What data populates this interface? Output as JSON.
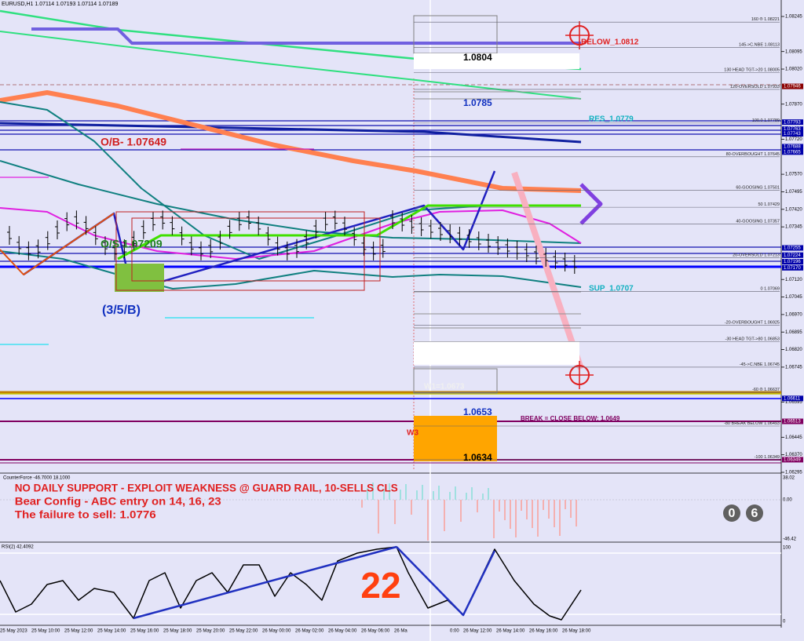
{
  "header": {
    "symbol": "EURUSD,H1",
    "ohlc": "1.07114 1.07193 1.07114 1.07189"
  },
  "price_axis": [
    "1.08245",
    "1.08095",
    "1.08020",
    "1.07870",
    "1.07720",
    "1.07570",
    "1.07495",
    "1.07420",
    "1.07345",
    "1.07120",
    "1.07045",
    "1.06970",
    "1.06895",
    "1.06820",
    "1.06745",
    "1.06595",
    "1.06445",
    "1.06370",
    "1.06295"
  ],
  "price_tags": [
    {
      "price": "1.07946",
      "color": "#8b0000"
    },
    {
      "price": "1.07793",
      "color": "#0000aa"
    },
    {
      "price": "1.07763",
      "color": "#0000aa"
    },
    {
      "price": "1.07743",
      "color": "#0000aa"
    },
    {
      "price": "1.07688",
      "color": "#0000aa"
    },
    {
      "price": "1.07665",
      "color": "#0000aa"
    },
    {
      "price": "1.07255",
      "color": "#0000aa"
    },
    {
      "price": "1.07224",
      "color": "#0000aa"
    },
    {
      "price": "1.07196",
      "color": "#0000aa"
    },
    {
      "price": "1.07170",
      "color": "#0000aa"
    },
    {
      "price": "1.06611",
      "color": "#0000aa"
    },
    {
      "price": "1.06513",
      "color": "#800060"
    },
    {
      "price": "1.06349",
      "color": "#800060"
    }
  ],
  "fib_levels": [
    {
      "name": "160 ®",
      "price": "1.08221"
    },
    {
      "name": "145->C.NBE",
      "price": "1.08113"
    },
    {
      "name": "130 HEAD TGT->20",
      "price": "1.08005"
    },
    {
      "name": "120-OVERSOLD",
      "price": "1.07933"
    },
    {
      "name": "100.0",
      "price": "1.07789"
    },
    {
      "name": "80-OVERBOUGHT",
      "price": "1.07645"
    },
    {
      "name": "60-GOOSING",
      "price": "1.07501"
    },
    {
      "name": "50",
      "price": "1.07429"
    },
    {
      "name": "40-GOOSING",
      "price": "1.07357"
    },
    {
      "name": "20-OVERSOLD",
      "price": "1.07213"
    },
    {
      "name": "0",
      "price": "1.07069"
    },
    {
      "name": "-20-OVERBOUGHT",
      "price": "1.06925"
    },
    {
      "name": "-30 HEAD TGT->80",
      "price": "1.06853"
    },
    {
      "name": "-45->C.NBE",
      "price": "1.06745"
    },
    {
      "name": "-60 ®",
      "price": "1.06637"
    },
    {
      "name": "-80 BREAK BELOW",
      "price": "1.06493"
    },
    {
      "name": "-100",
      "price": "1.06349"
    }
  ],
  "annotations": {
    "below": "BELOW_1.0812",
    "box_top": "1.0804",
    "box_mid": "1.0785",
    "res": "RES_1.0779",
    "overbought": "O/B- 1.07649",
    "oversold": "O/S 1.07209",
    "wave": "(3/5/B)",
    "sup": "SUP_1.0707",
    "w1": "W1=1.0673",
    "box_low": "1.0653",
    "w3": "W3",
    "break": "BREAK = CLOSE BELOW: 1.0649",
    "box_bottom": "1.0634"
  },
  "indicator": {
    "title": "CounterForce -46.7000 18.1000",
    "axis": [
      "38.02",
      "0.00",
      "-46.42"
    ],
    "notes": [
      "NO DAILY SUPPORT - EXPLOIT WEAKNESS @ GUARD RAIL, 10-SELLS CLS",
      "Bear Config - ABC entry on 14, 16, 23",
      "The failure to sell: 1.0776"
    ],
    "digits": [
      "0",
      "6"
    ]
  },
  "rsi": {
    "title": "RSI(2) 42.4092",
    "axis": [
      "100",
      "0"
    ],
    "big_number": "22"
  },
  "time_axis": [
    "25 May 2023",
    "25 May 10:00",
    "25 May 12:00",
    "25 May 14:00",
    "25 May 16:00",
    "25 May 18:00",
    "25 May 20:00",
    "25 May 22:00",
    "26 May 00:00",
    "26 May 02:00",
    "26 May 04:00",
    "26 May 06:00",
    "26 Ma",
    "0:00",
    "26 May 12:00",
    "26 May 14:00",
    "26 May 16:00",
    "26 May 18:00"
  ]
}
